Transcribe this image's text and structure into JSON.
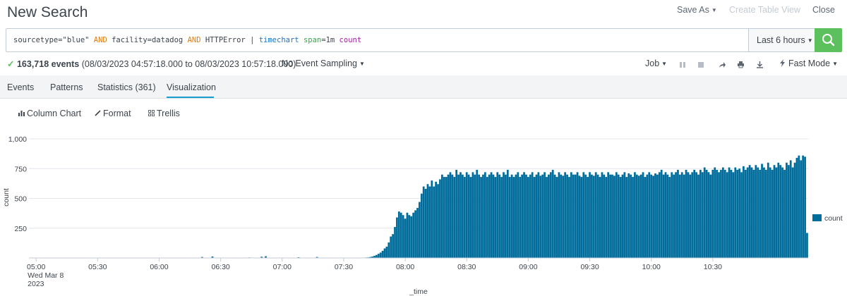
{
  "header": {
    "title": "New Search",
    "save_as": "Save As",
    "create_table_view": "Create Table View",
    "close": "Close"
  },
  "search": {
    "query_parts": {
      "p1": "sourcetype=\"blue\" ",
      "and1": "AND",
      "p2": " facility=datadog ",
      "and2": "AND",
      "p3": " HTTPError | ",
      "cmd": "timechart",
      "p4": " ",
      "arg": "span",
      "p5": "=1m ",
      "fn": "count"
    },
    "time_range": "Last 6 hours",
    "search_icon": "magnifier-icon"
  },
  "status": {
    "check": "✓",
    "event_count": "163,718 events",
    "range": "(08/03/2023 04:57:18.000 to 08/03/2023 10:57:18.000)",
    "sampling": "No Event Sampling",
    "job": "Job",
    "mode": "Fast Mode",
    "icons": [
      "pause-icon",
      "stop-icon",
      "share-icon",
      "print-icon",
      "export-icon",
      "bolt-icon"
    ]
  },
  "tabs": [
    {
      "label": "Events"
    },
    {
      "label": "Patterns"
    },
    {
      "label": "Statistics (361)"
    },
    {
      "label": "Visualization",
      "active": true
    }
  ],
  "viz_toolbar": {
    "column_chart": "Column Chart",
    "format": "Format",
    "trellis": "Trellis"
  },
  "colors": {
    "bar": "#006d9c",
    "search_button": "#5cc05c",
    "tab_underline": "#1a9cce"
  },
  "chart_data": {
    "type": "bar",
    "ylabel": "count",
    "xlabel": "_time",
    "ylim": [
      0,
      1000
    ],
    "yticks": [
      "1,000",
      "750",
      "500",
      "250"
    ],
    "ytick_values": [
      1000,
      750,
      500,
      250
    ],
    "xticks": [
      {
        "minute": 3,
        "label": "05:00",
        "sub1": "Wed Mar 8",
        "sub2": "2023"
      },
      {
        "minute": 33,
        "label": "05:30"
      },
      {
        "minute": 63,
        "label": "06:00"
      },
      {
        "minute": 93,
        "label": "06:30"
      },
      {
        "minute": 123,
        "label": "07:00"
      },
      {
        "minute": 153,
        "label": "07:30"
      },
      {
        "minute": 183,
        "label": "08:00"
      },
      {
        "minute": 213,
        "label": "08:30"
      },
      {
        "minute": 243,
        "label": "09:00"
      },
      {
        "minute": 273,
        "label": "09:30"
      },
      {
        "minute": 303,
        "label": "10:00"
      },
      {
        "minute": 333,
        "label": "10:30"
      }
    ],
    "legend": {
      "label": "count",
      "position": "right"
    },
    "series": [
      {
        "name": "count",
        "values": [
          0,
          0,
          0,
          0,
          0,
          0,
          0,
          0,
          0,
          0,
          0,
          0,
          0,
          0,
          0,
          0,
          0,
          0,
          0,
          0,
          0,
          0,
          0,
          0,
          0,
          0,
          0,
          0,
          0,
          0,
          0,
          0,
          0,
          0,
          0,
          0,
          0,
          0,
          0,
          0,
          0,
          0,
          0,
          0,
          0,
          0,
          0,
          0,
          0,
          0,
          0,
          0,
          0,
          0,
          0,
          0,
          0,
          0,
          0,
          0,
          0,
          0,
          0,
          0,
          0,
          0,
          0,
          0,
          0,
          0,
          0,
          0,
          0,
          0,
          0,
          0,
          0,
          0,
          0,
          0,
          0,
          0,
          0,
          0,
          8,
          0,
          0,
          0,
          0,
          12,
          0,
          0,
          0,
          0,
          0,
          0,
          0,
          0,
          0,
          0,
          0,
          0,
          0,
          0,
          0,
          0,
          0,
          4,
          0,
          0,
          0,
          0,
          0,
          10,
          0,
          14,
          0,
          0,
          0,
          0,
          0,
          0,
          0,
          0,
          0,
          0,
          0,
          0,
          0,
          0,
          0,
          6,
          0,
          0,
          0,
          0,
          0,
          0,
          0,
          0,
          8,
          0,
          0,
          0,
          0,
          0,
          0,
          0,
          0,
          0,
          0,
          0,
          0,
          0,
          0,
          0,
          0,
          0,
          0,
          0,
          0,
          0,
          0,
          3,
          4,
          5,
          8,
          12,
          18,
          25,
          35,
          45,
          60,
          80,
          95,
          130,
          180,
          200,
          260,
          340,
          390,
          380,
          360,
          330,
          380,
          360,
          350,
          380,
          400,
          420,
          470,
          540,
          600,
          580,
          620,
          600,
          650,
          600,
          640,
          620,
          660,
          700,
          680,
          680,
          700,
          720,
          700,
          680,
          740,
          700,
          720,
          700,
          680,
          720,
          700,
          680,
          720,
          700,
          740,
          700,
          680,
          700,
          720,
          680,
          700,
          720,
          700,
          680,
          720,
          700,
          680,
          720,
          700,
          740,
          680,
          700,
          680,
          700,
          720,
          680,
          700,
          720,
          700,
          680,
          700,
          720,
          680,
          700,
          720,
          690,
          700,
          720,
          680,
          700,
          720,
          740,
          700,
          680,
          720,
          700,
          690,
          720,
          700,
          680,
          720,
          700,
          700,
          720,
          690,
          680,
          720,
          700,
          680,
          720,
          700,
          690,
          720,
          700,
          680,
          720,
          700,
          680,
          720,
          700,
          700,
          690,
          720,
          700,
          680,
          700,
          720,
          680,
          710,
          700,
          680,
          720,
          700,
          690,
          700,
          720,
          680,
          700,
          720,
          700,
          690,
          710,
          700,
          720,
          740,
          700,
          720,
          700,
          680,
          720,
          700,
          720,
          740,
          700,
          720,
          700,
          740,
          720,
          700,
          720,
          740,
          720,
          700,
          740,
          720,
          760,
          740,
          720,
          700,
          740,
          760,
          740,
          720,
          740,
          760,
          740,
          720,
          760,
          740,
          720,
          760,
          740,
          750,
          720,
          770,
          740,
          760,
          780,
          760,
          740,
          780,
          760,
          740,
          790,
          760,
          740,
          800,
          760,
          740,
          780,
          760,
          800,
          780,
          760,
          740,
          800,
          780,
          820,
          760,
          800,
          840,
          860,
          820,
          860,
          850,
          210
        ]
      }
    ]
  }
}
